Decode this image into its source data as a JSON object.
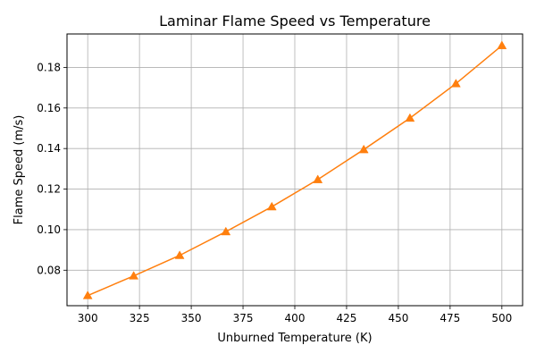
{
  "chart_data": {
    "type": "line",
    "title": "Laminar Flame Speed vs Temperature",
    "xlabel": "Unburned Temperature (K)",
    "ylabel": "Flame Speed (m/s)",
    "xlim": [
      290,
      510
    ],
    "ylim": [
      0.0625,
      0.1965
    ],
    "xticks": [
      300,
      325,
      350,
      375,
      400,
      425,
      450,
      475,
      500
    ],
    "yticks": [
      0.08,
      0.1,
      0.12,
      0.14,
      0.16,
      0.18
    ],
    "ytick_labels": [
      "0.08",
      "0.10",
      "0.12",
      "0.14",
      "0.16",
      "0.18"
    ],
    "grid": true,
    "series": [
      {
        "marker": "triangle-up",
        "color": "#ff7f0e",
        "x": [
          300,
          322.2,
          344.4,
          366.7,
          388.9,
          411.1,
          433.3,
          455.6,
          477.8,
          500
        ],
        "values": [
          0.0675,
          0.0772,
          0.0873,
          0.099,
          0.1113,
          0.1247,
          0.1395,
          0.155,
          0.172,
          0.1908
        ]
      }
    ]
  }
}
